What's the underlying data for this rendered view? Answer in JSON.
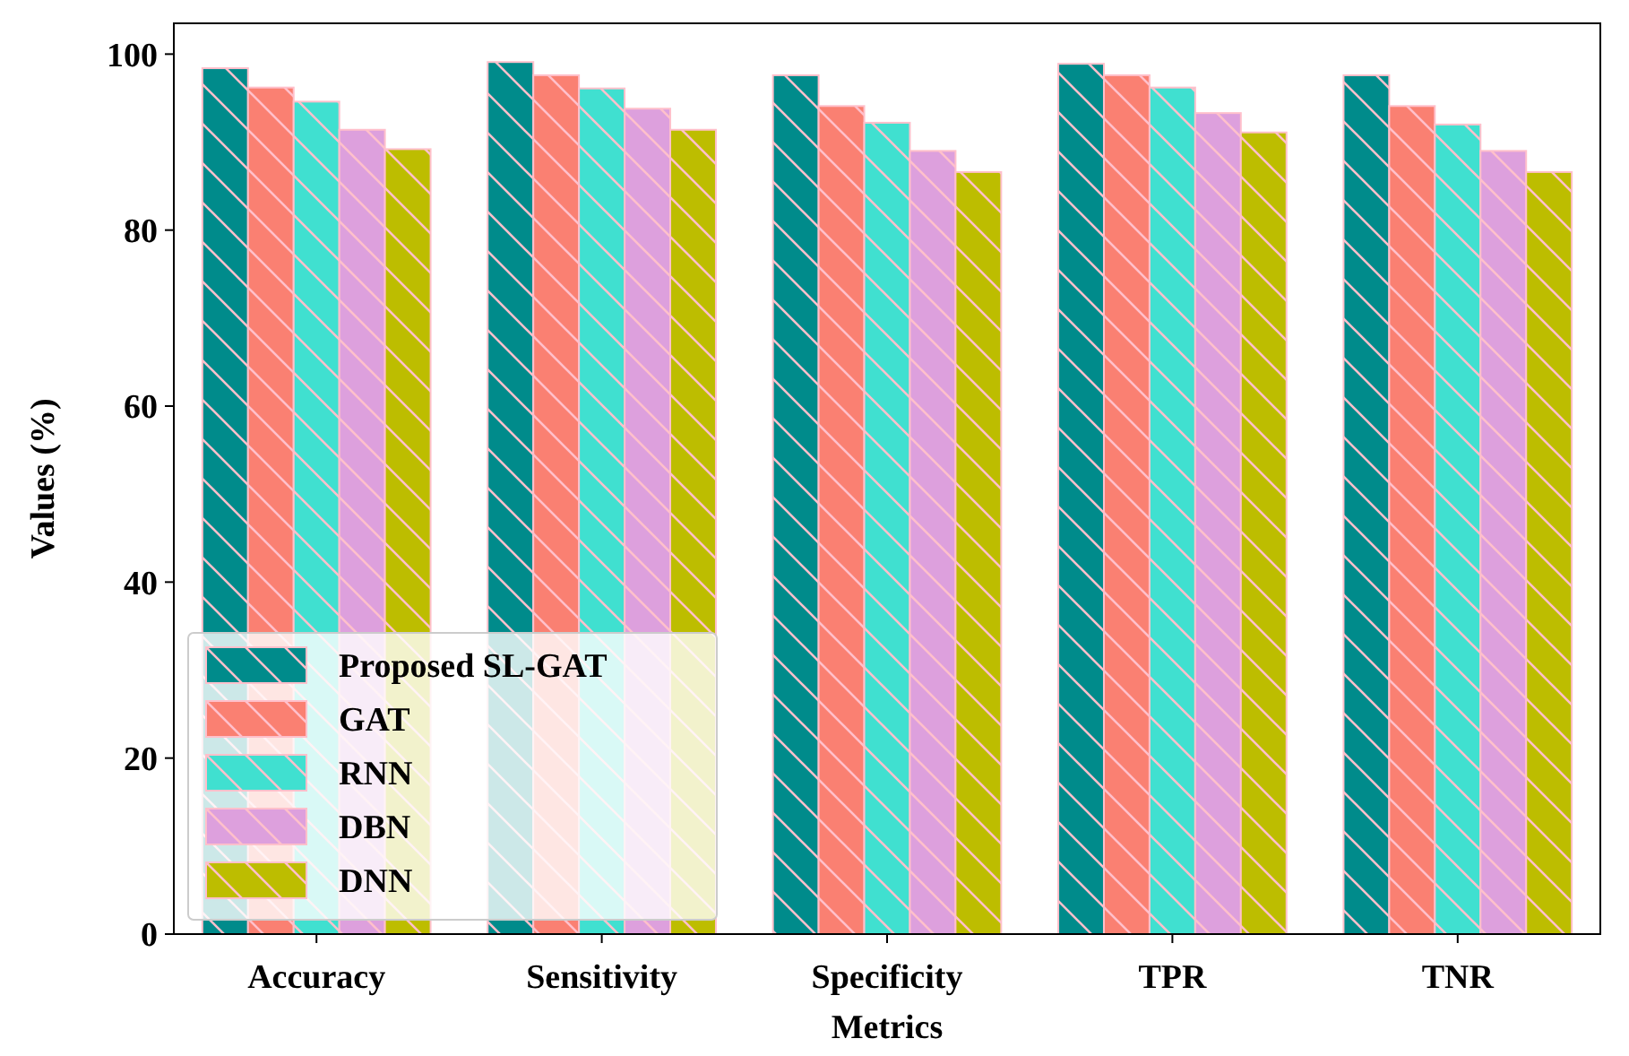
{
  "chart_data": {
    "type": "bar",
    "xlabel": "Metrics",
    "ylabel": "Values (%)",
    "categories": [
      "Accuracy",
      "Sensitivity",
      "Specificity",
      "TPR",
      "TNR"
    ],
    "series": [
      {
        "name": "Proposed SL-GAT",
        "color": "#008b8b",
        "values": [
          98.4,
          99.1,
          97.6,
          98.9,
          97.6
        ]
      },
      {
        "name": "GAT",
        "color": "#fa8072",
        "values": [
          96.2,
          97.6,
          94.1,
          97.6,
          94.1
        ]
      },
      {
        "name": "RNN",
        "color": "#40e0d0",
        "values": [
          94.6,
          96.1,
          92.2,
          96.2,
          92.0
        ]
      },
      {
        "name": "DBN",
        "color": "#dda0dd",
        "values": [
          91.4,
          93.8,
          89.0,
          93.3,
          89.0
        ]
      },
      {
        "name": "DNN",
        "color": "#bdbd00",
        "values": [
          89.2,
          91.4,
          86.6,
          91.1,
          86.6
        ]
      }
    ],
    "ylim": [
      0,
      103.5
    ],
    "yticks": [
      0,
      20,
      40,
      60,
      80,
      100
    ],
    "legend": "bottom left",
    "grid": false
  }
}
